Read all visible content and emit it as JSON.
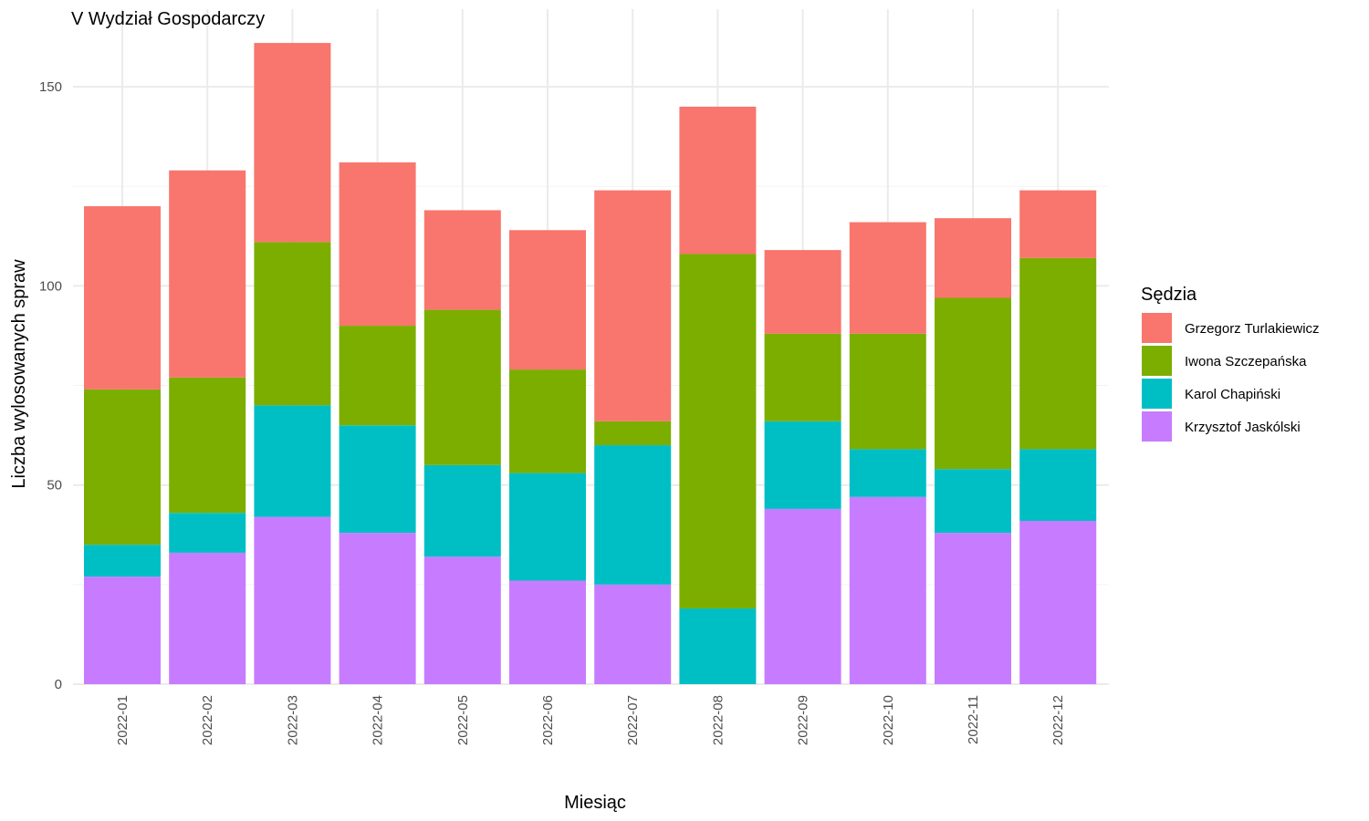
{
  "chart_data": {
    "type": "bar",
    "stacked": true,
    "title": "V Wydział Gospodarczy",
    "xlabel": "Miesiąc",
    "ylabel": "Liczba wylosowanych spraw",
    "ylim": [
      0,
      162
    ],
    "yticks": [
      0,
      50,
      100,
      150
    ],
    "grid": true,
    "legend_title": "Sędzia",
    "legend_position": "right",
    "categories": [
      "2022-01",
      "2022-02",
      "2022-03",
      "2022-04",
      "2022-05",
      "2022-06",
      "2022-07",
      "2022-08",
      "2022-09",
      "2022-10",
      "2022-11",
      "2022-12"
    ],
    "series": [
      {
        "name": "Grzegorz Turlakiewicz",
        "color": "#F8766D",
        "values": [
          46,
          52,
          50,
          41,
          25,
          35,
          58,
          37,
          21,
          28,
          20,
          17
        ]
      },
      {
        "name": "Iwona Szczepańska",
        "color": "#7CAE00",
        "values": [
          39,
          34,
          41,
          25,
          39,
          26,
          6,
          89,
          22,
          29,
          43,
          48
        ]
      },
      {
        "name": "Karol Chapiński",
        "color": "#00BFC4",
        "values": [
          8,
          10,
          28,
          27,
          23,
          27,
          35,
          19,
          22,
          12,
          16,
          18
        ]
      },
      {
        "name": "Krzysztof Jaskólski",
        "color": "#C77CFF",
        "values": [
          27,
          33,
          42,
          38,
          32,
          26,
          25,
          0,
          44,
          47,
          38,
          41
        ]
      }
    ]
  }
}
